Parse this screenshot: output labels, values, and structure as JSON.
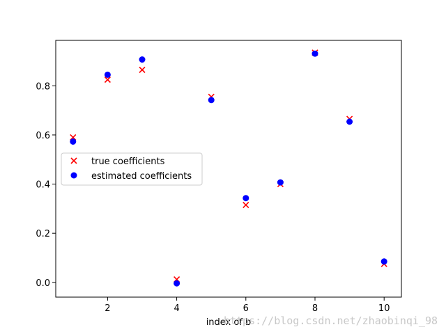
{
  "chart_data": {
    "type": "scatter",
    "xlabel": "index of b",
    "ylabel": "",
    "xlim": [
      0.5,
      10.5
    ],
    "ylim": [
      -0.06,
      0.985
    ],
    "xticks": [
      2,
      4,
      6,
      8,
      10
    ],
    "yticks": [
      0.0,
      0.2,
      0.4,
      0.6,
      0.8
    ],
    "x": [
      1,
      2,
      3,
      4,
      5,
      6,
      7,
      8,
      9,
      10
    ],
    "series": [
      {
        "name": "true coefficients",
        "marker": "x",
        "color": "#ff0000",
        "values": [
          0.59,
          0.825,
          0.865,
          0.012,
          0.755,
          0.315,
          0.4,
          0.935,
          0.665,
          0.075
        ]
      },
      {
        "name": "estimated coefficients",
        "marker": "o",
        "color": "#0000ff",
        "values": [
          0.573,
          0.845,
          0.907,
          -0.004,
          0.742,
          0.343,
          0.407,
          0.931,
          0.654,
          0.085
        ]
      }
    ],
    "grid": false,
    "legend_position": "center-left"
  },
  "watermark": "https://blog.csdn.net/zhaobinqi_98"
}
